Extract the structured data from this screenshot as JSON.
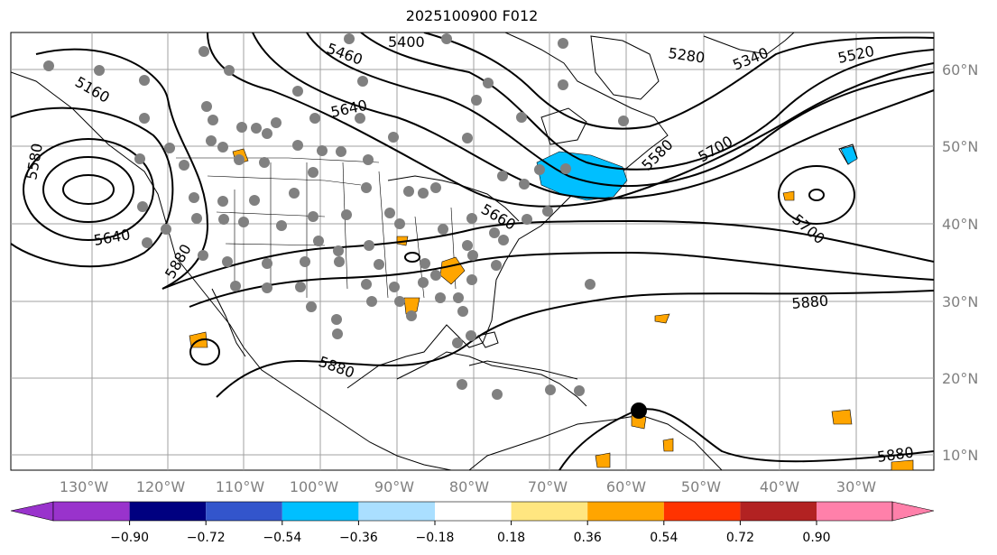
{
  "title": "2025100900 F012",
  "lon_labels": [
    "130°W",
    "120°W",
    "110°W",
    "100°W",
    "90°W",
    "80°W",
    "70°W",
    "60°W",
    "50°W",
    "40°W",
    "30°W"
  ],
  "lat_labels": [
    "60°N",
    "50°N",
    "40°N",
    "30°N",
    "20°N",
    "10°N"
  ],
  "contour_labels": [
    "5460",
    "5400",
    "5280",
    "5340",
    "5520",
    "5160",
    "5640",
    "5580",
    "5640",
    "5880",
    "5660",
    "5580",
    "5700",
    "5700",
    "5880",
    "5880",
    "5880"
  ],
  "colorbar": {
    "tick_labels": [
      "−0.90",
      "−0.72",
      "−0.54",
      "−0.36",
      "−0.18",
      "0.18",
      "0.36",
      "0.54",
      "0.72",
      "0.90"
    ],
    "colors": [
      "#9933cc",
      "#000080",
      "#3355cc",
      "#00bfff",
      "#aadfff",
      "#ffffff",
      "#ffe680",
      "#ffa500",
      "#ff3300",
      "#b22222",
      "#ff80aa"
    ]
  },
  "colors": {
    "grid": "#a0a0a0",
    "contour": "#000000",
    "station": "#808080",
    "positive": "#ffa500",
    "negative": "#00bfff"
  }
}
